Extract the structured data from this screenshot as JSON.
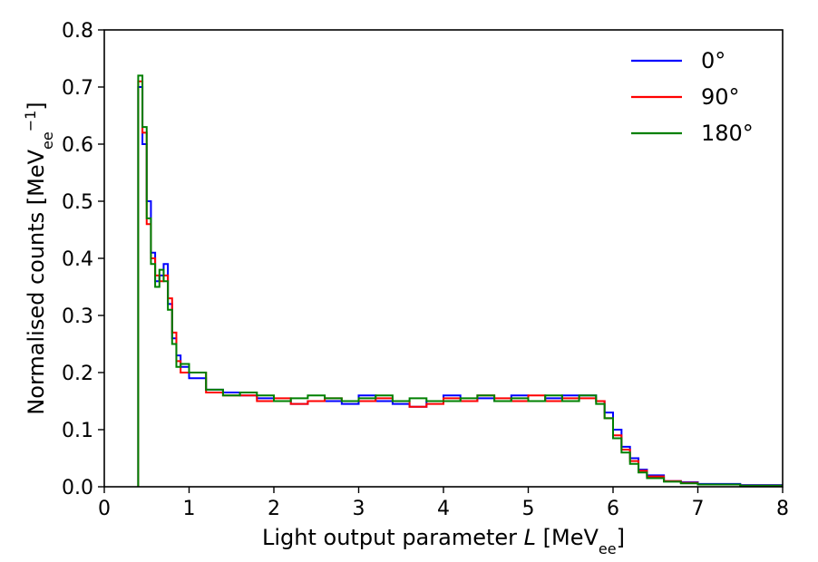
{
  "chart_data": {
    "type": "line",
    "style": "step-histogram",
    "xlabel_main": "Light output parameter ",
    "xlabel_var": "L",
    "xlabel_unit_open": " [MeV",
    "xlabel_unit_sub": "ee",
    "xlabel_unit_close": "]",
    "ylabel_main": "Normalised counts [MeV",
    "ylabel_sub": "ee",
    "ylabel_sup": "−1",
    "ylabel_close": "]",
    "xlim": [
      0,
      8
    ],
    "ylim": [
      0,
      0.8
    ],
    "x_ticks": [
      "0",
      "1",
      "2",
      "3",
      "4",
      "5",
      "6",
      "7",
      "8"
    ],
    "y_ticks": [
      "0.0",
      "0.1",
      "0.2",
      "0.3",
      "0.4",
      "0.5",
      "0.6",
      "0.7",
      "0.8"
    ],
    "grid": false,
    "legend_position": "top-right",
    "bin_edges": [
      0.4,
      0.45,
      0.5,
      0.55,
      0.6,
      0.65,
      0.7,
      0.75,
      0.8,
      0.85,
      0.9,
      1.0,
      1.2,
      1.4,
      1.6,
      1.8,
      2.0,
      2.2,
      2.4,
      2.6,
      2.8,
      3.0,
      3.2,
      3.4,
      3.6,
      3.8,
      4.0,
      4.2,
      4.4,
      4.6,
      4.8,
      5.0,
      5.2,
      5.4,
      5.6,
      5.8,
      5.9,
      6.0,
      6.1,
      6.2,
      6.3,
      6.4,
      6.6,
      6.8,
      7.0,
      7.5,
      8.0
    ],
    "series": [
      {
        "name": "0°",
        "color": "#0000ff",
        "values": [
          0.7,
          0.6,
          0.5,
          0.41,
          0.36,
          0.37,
          0.39,
          0.32,
          0.26,
          0.23,
          0.21,
          0.19,
          0.17,
          0.165,
          0.16,
          0.155,
          0.15,
          0.145,
          0.15,
          0.15,
          0.145,
          0.16,
          0.15,
          0.145,
          0.14,
          0.15,
          0.16,
          0.15,
          0.155,
          0.15,
          0.16,
          0.15,
          0.155,
          0.16,
          0.16,
          0.15,
          0.13,
          0.1,
          0.07,
          0.05,
          0.03,
          0.02,
          0.01,
          0.008,
          0.005,
          0.003
        ]
      },
      {
        "name": "90°",
        "color": "#ff0000",
        "values": [
          0.71,
          0.62,
          0.46,
          0.4,
          0.37,
          0.36,
          0.37,
          0.33,
          0.27,
          0.22,
          0.2,
          0.2,
          0.165,
          0.16,
          0.16,
          0.15,
          0.155,
          0.145,
          0.15,
          0.155,
          0.15,
          0.15,
          0.155,
          0.15,
          0.14,
          0.145,
          0.155,
          0.15,
          0.16,
          0.155,
          0.15,
          0.16,
          0.15,
          0.155,
          0.155,
          0.15,
          0.12,
          0.09,
          0.065,
          0.045,
          0.028,
          0.018,
          0.01,
          0.007,
          0.004,
          0.002
        ]
      },
      {
        "name": "180°",
        "color": "#008000",
        "values": [
          0.72,
          0.63,
          0.47,
          0.39,
          0.35,
          0.38,
          0.36,
          0.31,
          0.25,
          0.21,
          0.215,
          0.2,
          0.17,
          0.16,
          0.165,
          0.16,
          0.15,
          0.155,
          0.16,
          0.155,
          0.15,
          0.155,
          0.16,
          0.15,
          0.155,
          0.15,
          0.15,
          0.155,
          0.16,
          0.15,
          0.155,
          0.15,
          0.16,
          0.15,
          0.16,
          0.145,
          0.12,
          0.085,
          0.06,
          0.04,
          0.025,
          0.015,
          0.009,
          0.006,
          0.004,
          0.002
        ]
      }
    ]
  }
}
